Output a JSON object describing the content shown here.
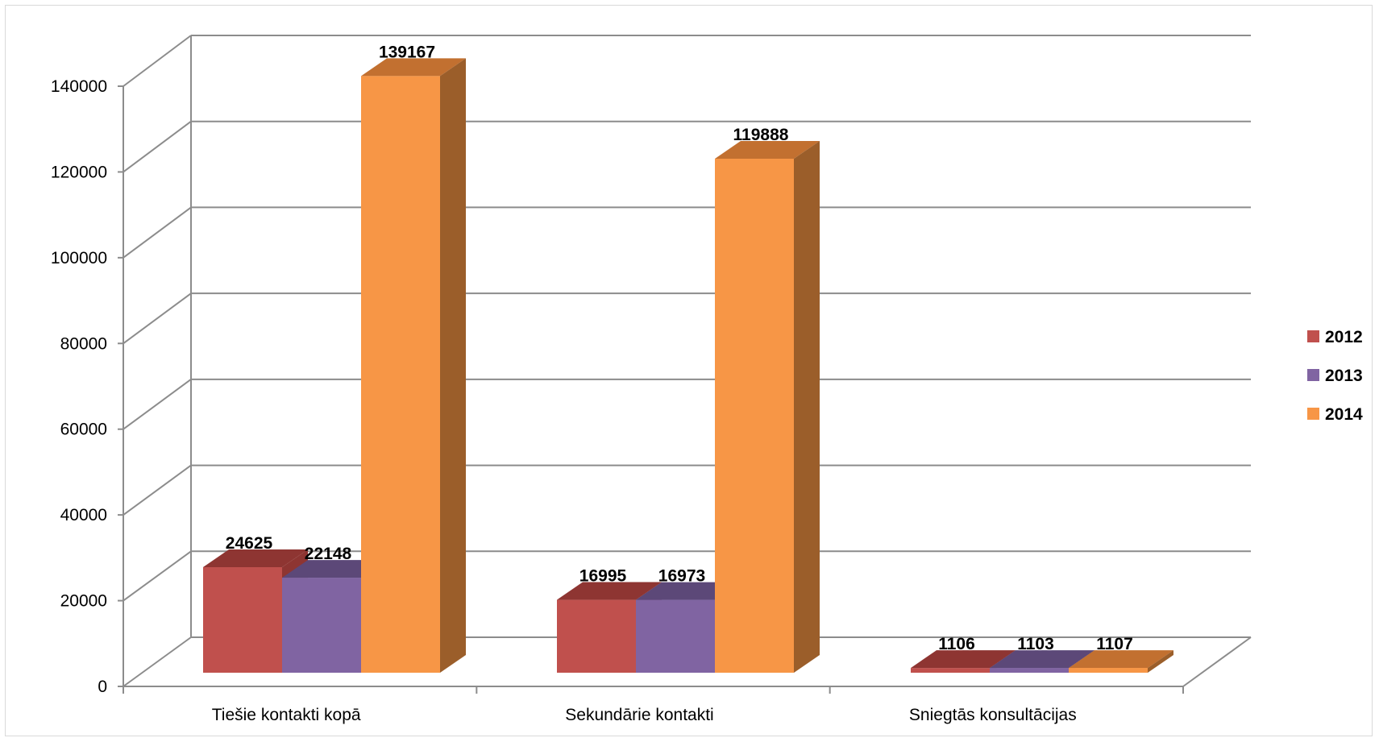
{
  "chart_data": {
    "type": "bar",
    "style": "3d-clustered-column",
    "categories": [
      "Tiešie kontakti kopā",
      "Sekundārie kontakti",
      "Sniegtās konsultācijas"
    ],
    "series": [
      {
        "name": "2012",
        "values": [
          24625,
          16995,
          1106
        ],
        "color": "#c0504d",
        "top_color": "#8e3532",
        "side_color": "#8e3532"
      },
      {
        "name": "2013",
        "values": [
          22148,
          16973,
          1103
        ],
        "color": "#8064a2",
        "top_color": "#5c4878",
        "side_color": "#5c4878"
      },
      {
        "name": "2014",
        "values": [
          139167,
          119888,
          1107
        ],
        "color": "#f79646",
        "top_color": "#c27030",
        "side_color": "#9b5e2a"
      }
    ],
    "data_labels": [
      [
        "24625",
        "16995",
        "1106"
      ],
      [
        "22148",
        "16973",
        "1103"
      ],
      [
        "139167",
        "119888",
        "1107"
      ]
    ],
    "ylim": [
      0,
      140000
    ],
    "yticks": [
      "0",
      "20000",
      "40000",
      "60000",
      "80000",
      "100000",
      "120000",
      "140000"
    ],
    "grid": true,
    "legend_position": "right",
    "title": "",
    "xlabel": "",
    "ylabel": ""
  }
}
